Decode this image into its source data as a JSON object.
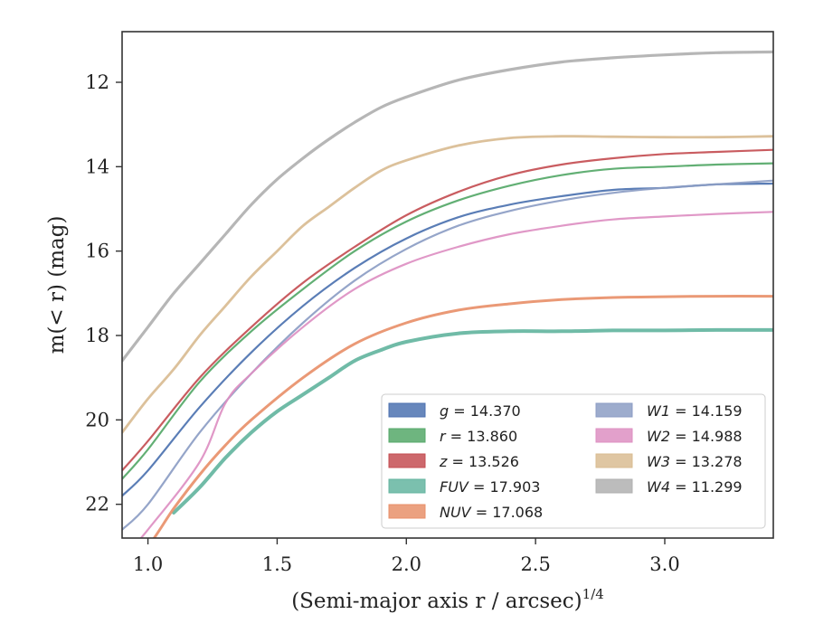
{
  "chart_data": {
    "type": "line",
    "xlabel": "(Semi-major axis r / arcsec)",
    "xlabel_sup": "1/4",
    "ylabel": "m(< r) (mag)",
    "xlim": [
      0.9,
      3.42
    ],
    "ylim": [
      22.8,
      10.8
    ],
    "y_inverted": true,
    "grid": false,
    "legend_position": "lower-right",
    "x_ticks": [
      {
        "value": 1.0,
        "label": "1.0"
      },
      {
        "value": 1.5,
        "label": "1.5"
      },
      {
        "value": 2.0,
        "label": "2.0"
      },
      {
        "value": 2.5,
        "label": "2.5"
      },
      {
        "value": 3.0,
        "label": "3.0"
      }
    ],
    "y_ticks": [
      {
        "value": 12,
        "label": "12"
      },
      {
        "value": 14,
        "label": "14"
      },
      {
        "value": 16,
        "label": "16"
      },
      {
        "value": 18,
        "label": "18"
      },
      {
        "value": 20,
        "label": "20"
      },
      {
        "value": 22,
        "label": "22"
      }
    ],
    "series": [
      {
        "name": "g",
        "legend_value": "14.370",
        "color": "#4c72b0",
        "band_width": 2.2,
        "x": [
          0.9,
          1.0,
          1.2,
          1.4,
          1.6,
          1.8,
          2.0,
          2.2,
          2.4,
          2.6,
          2.8,
          3.0,
          3.2,
          3.42
        ],
        "y": [
          21.8,
          21.2,
          19.7,
          18.4,
          17.3,
          16.4,
          15.7,
          15.2,
          14.9,
          14.7,
          14.55,
          14.5,
          14.42,
          14.4
        ]
      },
      {
        "name": "r",
        "legend_value": "13.860",
        "color": "#55a868",
        "band_width": 2.2,
        "x": [
          0.9,
          1.0,
          1.2,
          1.4,
          1.6,
          1.8,
          2.0,
          2.2,
          2.4,
          2.6,
          2.8,
          3.0,
          3.2,
          3.42
        ],
        "y": [
          21.4,
          20.7,
          19.1,
          17.9,
          16.9,
          16.0,
          15.3,
          14.8,
          14.45,
          14.2,
          14.05,
          14.0,
          13.95,
          13.92
        ]
      },
      {
        "name": "z",
        "legend_value": "13.526",
        "color": "#c44e52",
        "band_width": 2.2,
        "x": [
          0.9,
          1.0,
          1.2,
          1.4,
          1.6,
          1.8,
          2.0,
          2.2,
          2.4,
          2.6,
          2.8,
          3.0,
          3.2,
          3.42
        ],
        "y": [
          21.2,
          20.5,
          19.0,
          17.8,
          16.75,
          15.9,
          15.15,
          14.6,
          14.2,
          13.95,
          13.8,
          13.7,
          13.65,
          13.6
        ]
      },
      {
        "name": "FUV",
        "legend_value": "17.903",
        "color": "#64b5a0",
        "band_width": 4,
        "x": [
          1.1,
          1.2,
          1.3,
          1.4,
          1.5,
          1.6,
          1.7,
          1.8,
          1.9,
          2.0,
          2.2,
          2.4,
          2.6,
          2.8,
          3.0,
          3.2,
          3.42
        ],
        "y": [
          22.2,
          21.6,
          20.9,
          20.3,
          19.8,
          19.4,
          19.0,
          18.6,
          18.35,
          18.15,
          17.95,
          17.9,
          17.9,
          17.88,
          17.88,
          17.87,
          17.87
        ]
      },
      {
        "name": "NUV",
        "legend_value": "17.068",
        "color": "#e8906a",
        "band_width": 3,
        "x": [
          0.9,
          1.0,
          1.1,
          1.2,
          1.3,
          1.4,
          1.6,
          1.8,
          2.0,
          2.2,
          2.4,
          2.6,
          2.8,
          3.0,
          3.2,
          3.42
        ],
        "y": [
          23.6,
          23.0,
          22.1,
          21.3,
          20.6,
          20.0,
          19.0,
          18.2,
          17.7,
          17.4,
          17.25,
          17.15,
          17.1,
          17.08,
          17.07,
          17.07
        ]
      },
      {
        "name": "W1",
        "legend_value": "14.159",
        "color": "#8c9dc4",
        "band_width": 2.2,
        "x": [
          0.9,
          1.0,
          1.2,
          1.4,
          1.6,
          1.8,
          2.0,
          2.2,
          2.4,
          2.6,
          2.8,
          3.0,
          3.2,
          3.42
        ],
        "y": [
          22.6,
          22.0,
          20.3,
          18.9,
          17.7,
          16.7,
          15.95,
          15.4,
          15.05,
          14.8,
          14.62,
          14.5,
          14.42,
          14.33
        ]
      },
      {
        "name": "W2",
        "legend_value": "14.988",
        "color": "#dd8fc2",
        "band_width": 2.2,
        "x": [
          0.9,
          1.0,
          1.2,
          1.3,
          1.4,
          1.6,
          1.8,
          2.0,
          2.2,
          2.4,
          2.6,
          2.8,
          3.0,
          3.2,
          3.42
        ],
        "y": [
          23.3,
          22.6,
          21.0,
          19.6,
          18.9,
          17.8,
          16.9,
          16.3,
          15.9,
          15.6,
          15.4,
          15.25,
          15.18,
          15.12,
          15.07
        ]
      },
      {
        "name": "W3",
        "legend_value": "13.278",
        "color": "#d9bc92",
        "band_width": 2.8,
        "x": [
          0.9,
          1.0,
          1.1,
          1.2,
          1.3,
          1.4,
          1.5,
          1.6,
          1.7,
          1.8,
          1.9,
          2.0,
          2.2,
          2.4,
          2.6,
          2.8,
          3.0,
          3.2,
          3.42
        ],
        "y": [
          20.3,
          19.5,
          18.8,
          18.0,
          17.3,
          16.6,
          16.0,
          15.4,
          14.95,
          14.5,
          14.1,
          13.85,
          13.5,
          13.32,
          13.28,
          13.29,
          13.3,
          13.3,
          13.28
        ]
      },
      {
        "name": "W4",
        "legend_value": "11.299",
        "color": "#b0b0b0",
        "band_width": 3.2,
        "x": [
          0.9,
          1.0,
          1.1,
          1.2,
          1.3,
          1.4,
          1.5,
          1.6,
          1.7,
          1.8,
          1.9,
          2.0,
          2.2,
          2.4,
          2.6,
          2.8,
          3.0,
          3.2,
          3.42
        ],
        "y": [
          18.6,
          17.8,
          17.0,
          16.3,
          15.6,
          14.9,
          14.3,
          13.8,
          13.35,
          12.95,
          12.6,
          12.35,
          11.95,
          11.7,
          11.52,
          11.42,
          11.35,
          11.3,
          11.28
        ]
      }
    ],
    "legend_columns": [
      [
        "g",
        "r",
        "z",
        "FUV",
        "NUV"
      ],
      [
        "W1",
        "W2",
        "W3",
        "W4"
      ]
    ]
  }
}
